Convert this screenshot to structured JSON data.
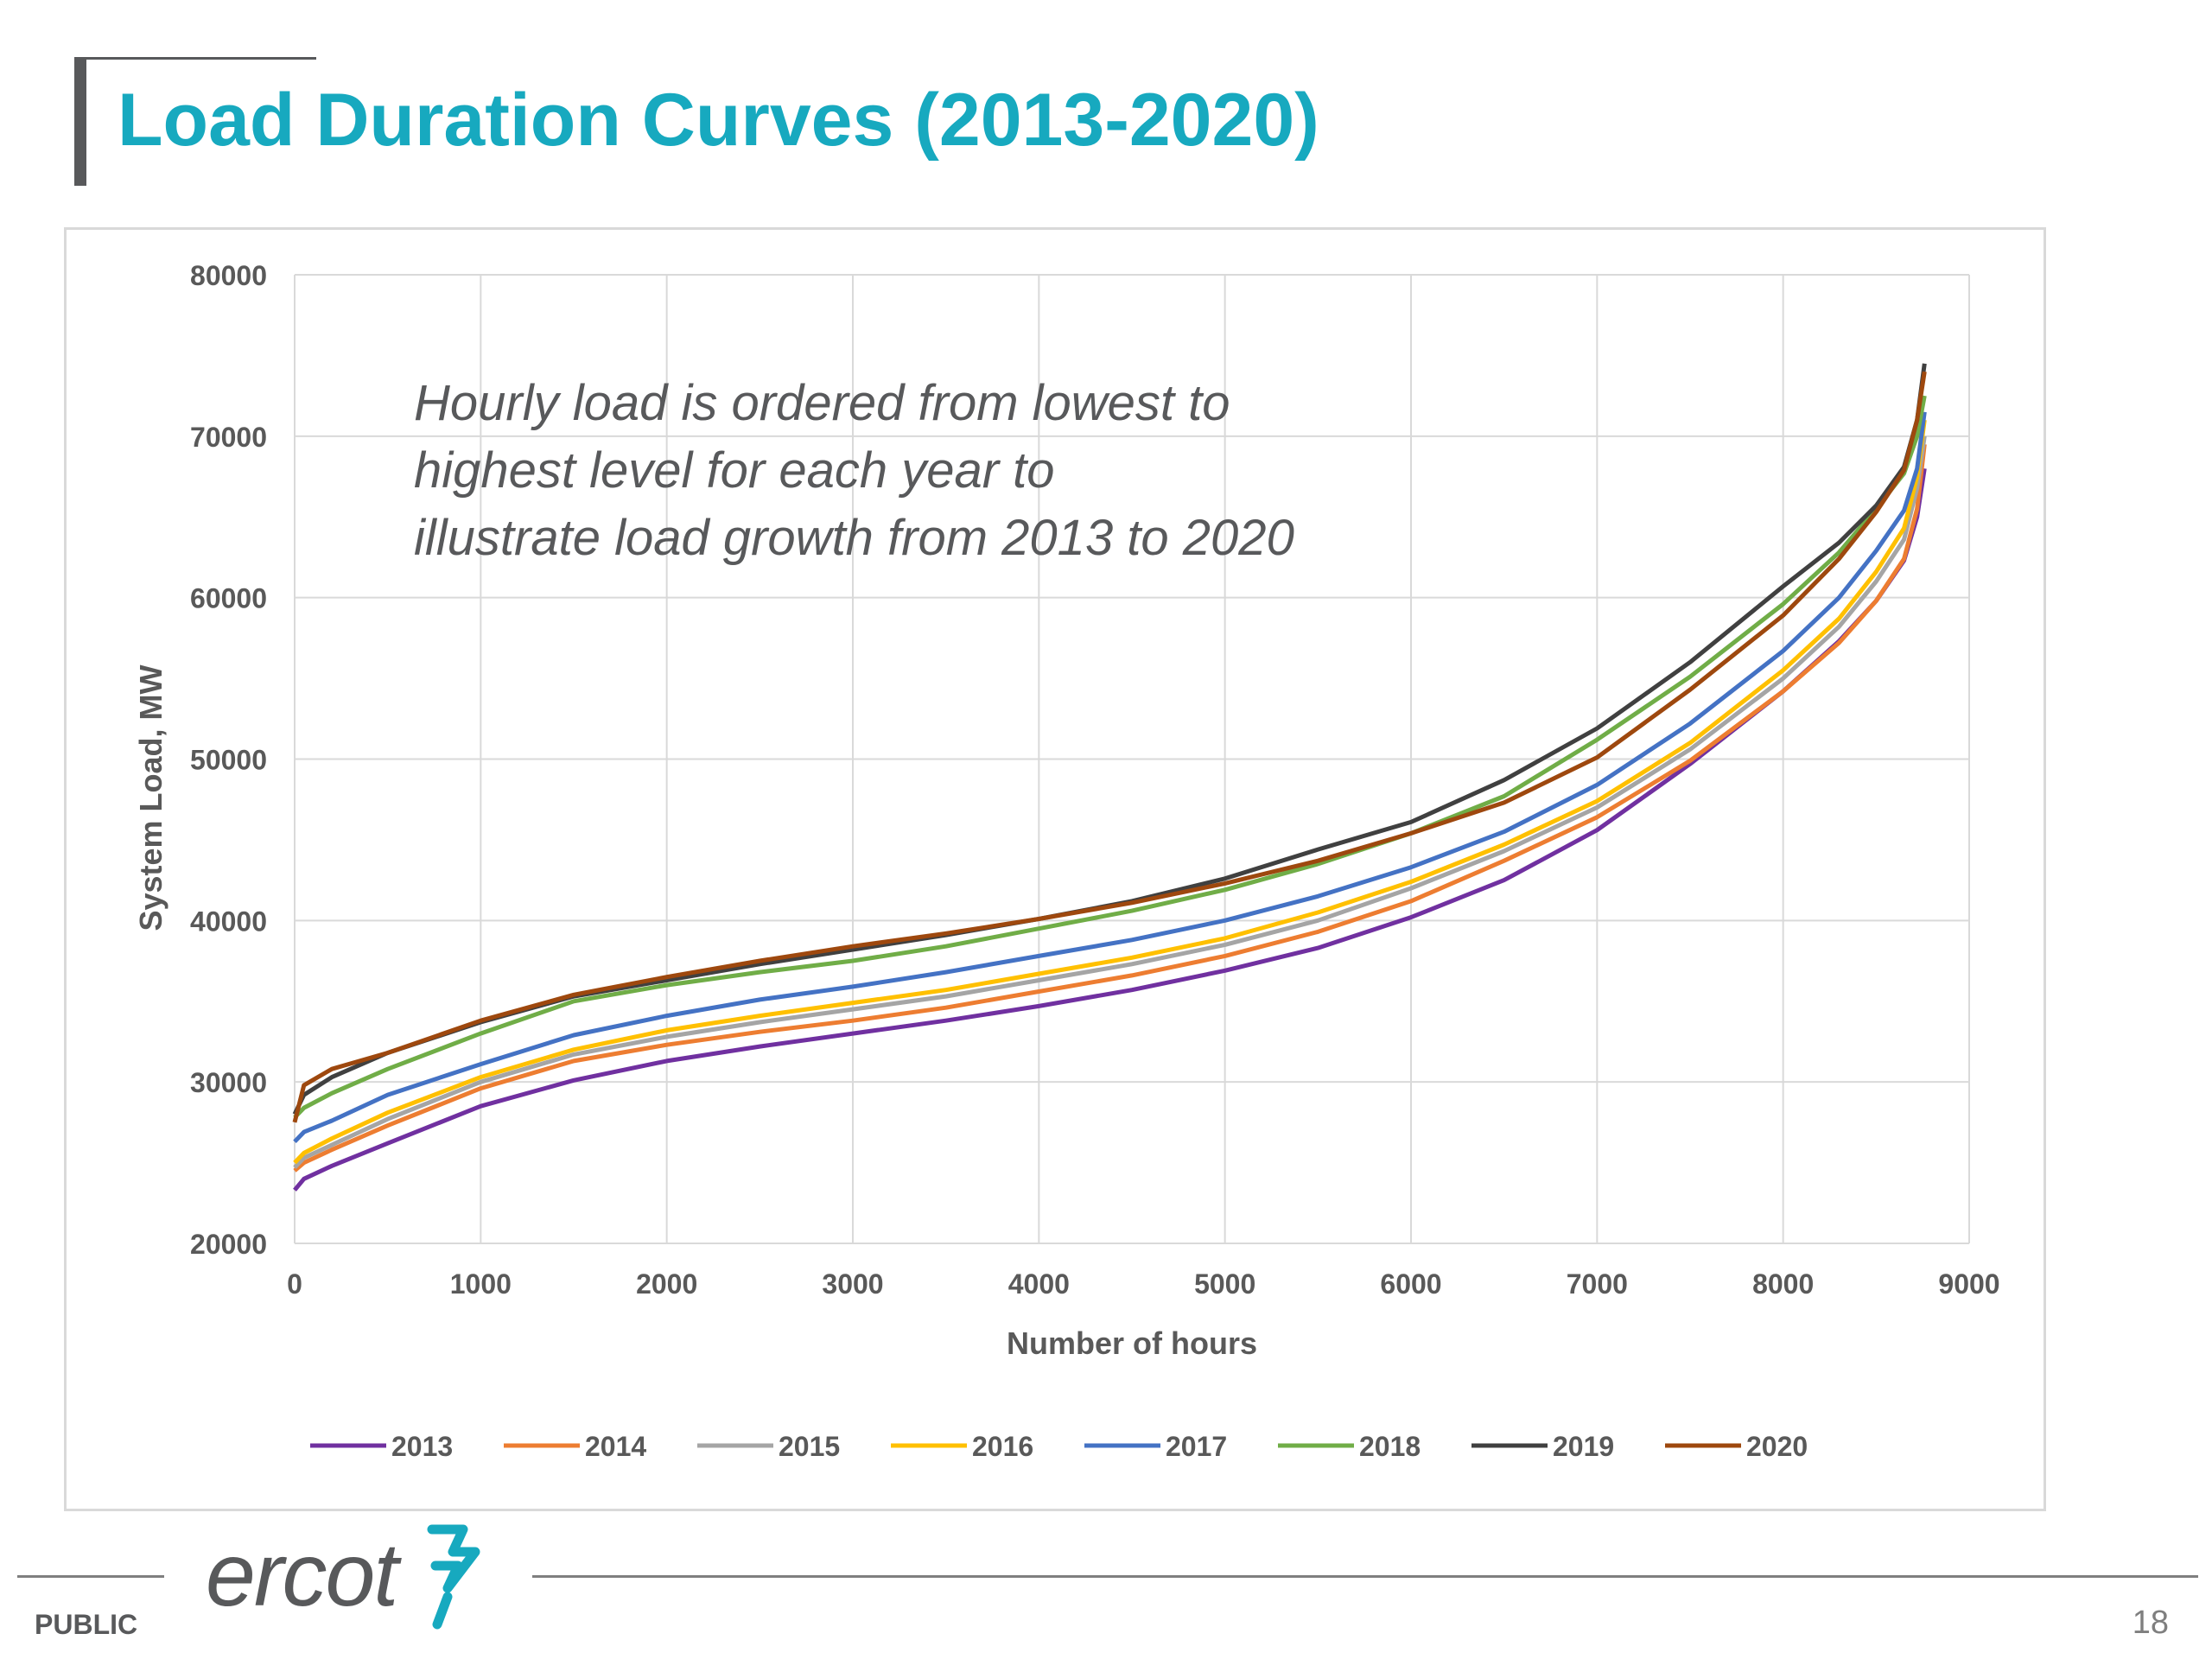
{
  "slide": {
    "title": "Load Duration Curves (2013-2020)",
    "classification": "PUBLIC",
    "page_number": "18"
  },
  "logo": {
    "text": "ercot"
  },
  "colors": {
    "title": "#17a9bf",
    "bar": "#58595b"
  },
  "chart_data": {
    "type": "line",
    "title": "",
    "xlabel": "Number of hours",
    "ylabel": "System Load, MW",
    "xlim": [
      0,
      9000
    ],
    "ylim": [
      20000,
      80000
    ],
    "xticks": [
      0,
      1000,
      2000,
      3000,
      4000,
      5000,
      6000,
      7000,
      8000,
      9000
    ],
    "yticks": [
      20000,
      30000,
      40000,
      50000,
      60000,
      70000,
      80000
    ],
    "grid": true,
    "legend_position": "bottom",
    "annotation": "Hourly load is ordered from lowest to highest level for each year to illustrate load growth from 2013 to 2020",
    "series": [
      {
        "name": "2013",
        "color": "#7030a0",
        "x": [
          0,
          50,
          200,
          500,
          1000,
          1500,
          2000,
          2500,
          3000,
          3500,
          4000,
          4500,
          5000,
          5500,
          6000,
          6500,
          7000,
          7500,
          8000,
          8300,
          8500,
          8650,
          8720,
          8760
        ],
        "y": [
          23300,
          24000,
          24800,
          26200,
          28500,
          30100,
          31300,
          32200,
          33000,
          33800,
          34700,
          35700,
          36900,
          38300,
          40200,
          42500,
          45600,
          49700,
          54200,
          57300,
          59800,
          62300,
          65000,
          68000
        ]
      },
      {
        "name": "2014",
        "color": "#ed7d31",
        "x": [
          0,
          50,
          200,
          500,
          1000,
          1500,
          2000,
          2500,
          3000,
          3500,
          4000,
          4500,
          5000,
          5500,
          6000,
          6500,
          7000,
          7500,
          8000,
          8300,
          8500,
          8650,
          8720,
          8760
        ],
        "y": [
          24500,
          25000,
          25800,
          27300,
          29600,
          31300,
          32300,
          33100,
          33800,
          34600,
          35600,
          36600,
          37800,
          39300,
          41200,
          43700,
          46400,
          49900,
          54200,
          57200,
          59800,
          62400,
          65500,
          69500
        ]
      },
      {
        "name": "2015",
        "color": "#a5a5a5",
        "x": [
          0,
          50,
          200,
          500,
          1000,
          1500,
          2000,
          2500,
          3000,
          3500,
          4000,
          4500,
          5000,
          5500,
          6000,
          6500,
          7000,
          7500,
          8000,
          8300,
          8500,
          8650,
          8720,
          8760
        ],
        "y": [
          24700,
          25300,
          26100,
          27700,
          30000,
          31700,
          32800,
          33700,
          34500,
          35300,
          36300,
          37300,
          38500,
          40000,
          42000,
          44300,
          47000,
          50600,
          55000,
          58200,
          61000,
          63600,
          66800,
          70000
        ]
      },
      {
        "name": "2016",
        "color": "#ffc000",
        "x": [
          0,
          50,
          200,
          500,
          1000,
          1500,
          2000,
          2500,
          3000,
          3500,
          4000,
          4500,
          5000,
          5500,
          6000,
          6500,
          7000,
          7500,
          8000,
          8300,
          8500,
          8650,
          8720,
          8760
        ],
        "y": [
          25000,
          25600,
          26500,
          28100,
          30300,
          32000,
          33200,
          34100,
          34900,
          35700,
          36700,
          37700,
          38900,
          40500,
          42400,
          44700,
          47400,
          51000,
          55500,
          58700,
          61600,
          64300,
          67500,
          71000
        ]
      },
      {
        "name": "2017",
        "color": "#4472c4",
        "x": [
          0,
          50,
          200,
          500,
          1000,
          1500,
          2000,
          2500,
          3000,
          3500,
          4000,
          4500,
          5000,
          5500,
          6000,
          6500,
          7000,
          7500,
          8000,
          8300,
          8500,
          8650,
          8720,
          8760
        ],
        "y": [
          26300,
          26900,
          27600,
          29200,
          31100,
          32900,
          34100,
          35100,
          35900,
          36800,
          37800,
          38800,
          40000,
          41500,
          43300,
          45500,
          48400,
          52200,
          56700,
          60000,
          62900,
          65400,
          68000,
          71500
        ]
      },
      {
        "name": "2018",
        "color": "#70ad47",
        "x": [
          0,
          50,
          200,
          500,
          1000,
          1500,
          2000,
          2500,
          3000,
          3500,
          4000,
          4500,
          5000,
          5500,
          6000,
          6500,
          7000,
          7500,
          8000,
          8300,
          8500,
          8650,
          8720,
          8760
        ],
        "y": [
          27800,
          28400,
          29300,
          30800,
          33000,
          35000,
          36000,
          36800,
          37500,
          38400,
          39500,
          40600,
          41900,
          43500,
          45400,
          47700,
          51200,
          55100,
          59600,
          62800,
          65500,
          67700,
          70000,
          72500
        ]
      },
      {
        "name": "2019",
        "color": "#404040",
        "x": [
          0,
          50,
          200,
          500,
          1000,
          1500,
          2000,
          2500,
          3000,
          3500,
          4000,
          4500,
          5000,
          5500,
          6000,
          6500,
          7000,
          7500,
          8000,
          8300,
          8500,
          8650,
          8720,
          8760
        ],
        "y": [
          28000,
          29200,
          30300,
          31800,
          33700,
          35300,
          36300,
          37300,
          38200,
          39100,
          40100,
          41200,
          42600,
          44400,
          46100,
          48700,
          51900,
          56000,
          60700,
          63400,
          65700,
          68100,
          71000,
          74500
        ]
      },
      {
        "name": "2020",
        "color": "#9e480e",
        "x": [
          0,
          50,
          200,
          500,
          1000,
          1500,
          2000,
          2500,
          3000,
          3500,
          4000,
          4500,
          5000,
          5500,
          6000,
          6500,
          7000,
          7500,
          8000,
          8300,
          8500,
          8650,
          8720,
          8760
        ],
        "y": [
          27500,
          29800,
          30800,
          31800,
          33800,
          35400,
          36500,
          37500,
          38400,
          39200,
          40100,
          41100,
          42300,
          43700,
          45400,
          47300,
          50100,
          54300,
          58900,
          62400,
          65300,
          67900,
          71000,
          74000
        ]
      }
    ]
  }
}
